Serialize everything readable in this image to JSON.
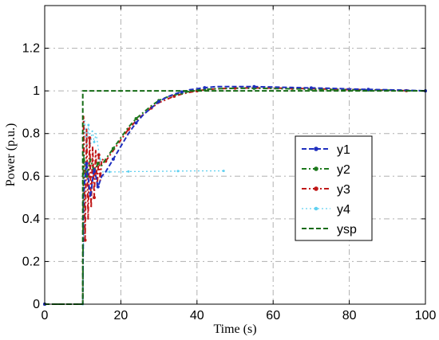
{
  "chart_data": {
    "type": "line",
    "title": "",
    "xlabel": "Time (s)",
    "ylabel": "Power (p.u.)",
    "xlim": [
      0,
      100
    ],
    "ylim": [
      0,
      1.4
    ],
    "xticks": [
      0,
      20,
      40,
      60,
      80,
      100
    ],
    "yticks": [
      0,
      0.2,
      0.4,
      0.6,
      0.8,
      1,
      1.2
    ],
    "xtick_labels": [
      "0",
      "20",
      "40",
      "60",
      "80",
      "100"
    ],
    "ytick_labels": [
      "0",
      "0.2",
      "0.4",
      "0.6",
      "0.8",
      "1",
      "1.2"
    ],
    "grid": true,
    "legend_position": "center-right",
    "series": [
      {
        "name": "y1",
        "color": "#1f2fbf",
        "style": "dashed-dot-markers",
        "x": [
          0,
          10,
          10.2,
          11,
          12,
          13,
          14,
          15,
          16,
          18,
          20,
          22,
          24,
          26,
          28,
          30,
          32,
          34,
          36,
          38,
          40,
          42,
          45,
          50,
          55,
          60,
          65,
          70,
          75,
          80,
          85,
          90,
          95,
          100
        ],
        "y": [
          0,
          0,
          0.52,
          0.66,
          0.5,
          0.64,
          0.55,
          0.6,
          0.62,
          0.68,
          0.74,
          0.8,
          0.85,
          0.89,
          0.92,
          0.95,
          0.97,
          0.985,
          0.995,
          1.005,
          1.01,
          1.015,
          1.02,
          1.02,
          1.02,
          1.018,
          1.016,
          1.014,
          1.012,
          1.009,
          1.007,
          1.005,
          1.003,
          1.0
        ]
      },
      {
        "name": "y2",
        "color": "#1e7a1e",
        "style": "dash-dot-markers",
        "x": [
          0,
          10,
          10.2,
          11,
          12,
          13,
          14,
          15,
          16,
          18,
          20,
          22,
          24,
          26,
          28,
          30,
          32,
          34,
          36,
          38,
          40,
          42,
          45,
          50,
          55,
          60,
          65,
          70,
          75,
          80,
          85,
          90,
          95,
          100
        ],
        "y": [
          0,
          0,
          0.7,
          0.6,
          0.68,
          0.62,
          0.66,
          0.65,
          0.68,
          0.73,
          0.78,
          0.83,
          0.87,
          0.9,
          0.93,
          0.955,
          0.97,
          0.98,
          0.99,
          0.997,
          1.003,
          1.007,
          1.01,
          1.012,
          1.012,
          1.011,
          1.01,
          1.008,
          1.006,
          1.005,
          1.004,
          1.003,
          1.001,
          1.0
        ]
      },
      {
        "name": "y3",
        "color": "#c01818",
        "style": "dash-dot-markers",
        "x": [
          0,
          10,
          10.2,
          10.6,
          11,
          11.4,
          11.8,
          12.2,
          12.6,
          13,
          13.4,
          13.8,
          14.2,
          14.6,
          15,
          16,
          18,
          20,
          22,
          24,
          26,
          28,
          30,
          32,
          34,
          36,
          38,
          40,
          42,
          45,
          50,
          55,
          60,
          65,
          70,
          75,
          80,
          85,
          90,
          95,
          100
        ],
        "y": [
          0,
          0,
          0.88,
          0.3,
          0.82,
          0.4,
          0.78,
          0.45,
          0.74,
          0.5,
          0.72,
          0.55,
          0.7,
          0.58,
          0.68,
          0.67,
          0.72,
          0.77,
          0.82,
          0.86,
          0.89,
          0.92,
          0.945,
          0.96,
          0.975,
          0.985,
          0.993,
          1.0,
          1.005,
          1.01,
          1.013,
          1.014,
          1.013,
          1.012,
          1.01,
          1.008,
          1.006,
          1.005,
          1.003,
          1.001,
          1.0
        ]
      },
      {
        "name": "y4",
        "color": "#5fd0f0",
        "style": "dotted-markers",
        "x": [
          10,
          10.5,
          11,
          11.5,
          12,
          12.5,
          13,
          13.5,
          14,
          14.5,
          15,
          16,
          17,
          18,
          20,
          22,
          25,
          30,
          35,
          40,
          45,
          47
        ],
        "y": [
          0.0,
          0.86,
          0.72,
          0.84,
          0.74,
          0.82,
          0.76,
          0.8,
          0.74,
          0.68,
          0.62,
          0.62,
          0.62,
          0.62,
          0.62,
          0.622,
          0.622,
          0.623,
          0.624,
          0.625,
          0.625,
          0.625
        ]
      },
      {
        "name": "ysp",
        "color": "#156b15",
        "style": "dashed",
        "x": [
          0,
          10,
          10,
          100
        ],
        "y": [
          0,
          0,
          1,
          1
        ]
      }
    ]
  }
}
